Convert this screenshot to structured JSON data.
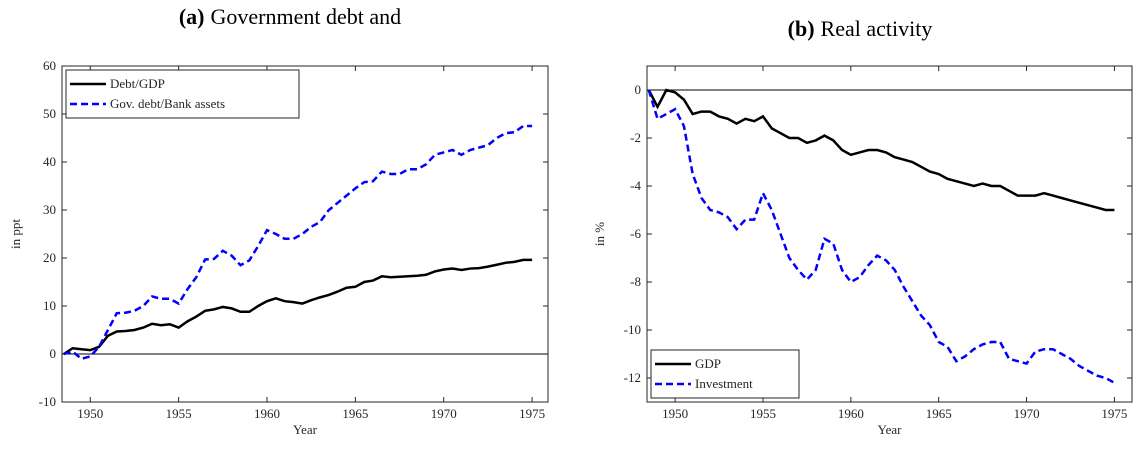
{
  "chart_data": [
    {
      "type": "line",
      "panel_label": "(a)",
      "title": "Government debt and",
      "xlabel": "Year",
      "ylabel": "in ppt",
      "xlim": [
        1948.4,
        1975.9
      ],
      "xticks": [
        1950,
        1955,
        1960,
        1965,
        1970,
        1975
      ],
      "ylim": [
        -10,
        60
      ],
      "yticks": [
        -10,
        0,
        10,
        20,
        30,
        40,
        50,
        60
      ],
      "reference_line": 0,
      "legend": "upper-left",
      "x": [
        1948.5,
        1949,
        1949.5,
        1950,
        1950.5,
        1951,
        1951.5,
        1952,
        1952.5,
        1953,
        1953.5,
        1954,
        1954.5,
        1955,
        1955.5,
        1956,
        1956.5,
        1957,
        1957.5,
        1958,
        1958.5,
        1959,
        1959.5,
        1960,
        1960.5,
        1961,
        1961.5,
        1962,
        1962.5,
        1963,
        1963.5,
        1964,
        1964.5,
        1965,
        1965.5,
        1966,
        1966.5,
        1967,
        1967.5,
        1968,
        1968.5,
        1969,
        1969.5,
        1970,
        1970.5,
        1971,
        1971.5,
        1972,
        1972.5,
        1973,
        1973.5,
        1974,
        1974.5,
        1975
      ],
      "series": [
        {
          "name": "Debt/GDP",
          "color": "#000000",
          "dash": "solid",
          "values": [
            0,
            1.2,
            1.0,
            0.8,
            1.5,
            3.8,
            4.7,
            4.8,
            5.0,
            5.5,
            6.3,
            6.0,
            6.2,
            5.5,
            6.8,
            7.8,
            9.0,
            9.3,
            9.8,
            9.5,
            8.8,
            8.8,
            10,
            11,
            11.6,
            11,
            10.8,
            10.5,
            11.2,
            11.8,
            12.3,
            13,
            13.8,
            14,
            15,
            15.3,
            16.2,
            16,
            16.1,
            16.2,
            16.3,
            16.5,
            17.2,
            17.6,
            17.8,
            17.5,
            17.8,
            17.9,
            18.2,
            18.6,
            19.0,
            19.2,
            19.6,
            19.6
          ]
        },
        {
          "name": "Gov. debt/Bank assets",
          "color": "#0000ff",
          "dash": "dashed",
          "values": [
            0,
            0.5,
            -1,
            -0.5,
            1.5,
            5,
            8.5,
            8.6,
            9,
            10,
            12,
            11.5,
            11.5,
            10.5,
            13.5,
            16,
            19.7,
            19.8,
            21.5,
            20.5,
            18.5,
            19.5,
            22.5,
            25.8,
            25,
            24,
            24,
            25,
            26.5,
            27.5,
            30,
            31.5,
            33,
            34.5,
            35.8,
            36,
            38,
            37.5,
            37.5,
            38.5,
            38.5,
            39.5,
            41.5,
            42,
            42.5,
            41.5,
            42.5,
            43,
            43.5,
            45,
            46,
            46.2,
            47.5,
            47.5
          ]
        }
      ]
    },
    {
      "type": "line",
      "panel_label": "(b)",
      "title": "Real activity",
      "xlabel": "Year",
      "ylabel": "in %",
      "xlim": [
        1948.4,
        1976
      ],
      "xticks": [
        1950,
        1955,
        1960,
        1965,
        1970,
        1975
      ],
      "ylim": [
        -13,
        1
      ],
      "yticks": [
        -12,
        -10,
        -8,
        -6,
        -4,
        -2,
        0
      ],
      "reference_line": 0,
      "legend": "lower-left",
      "x": [
        1948.5,
        1949,
        1949.5,
        1950,
        1950.5,
        1951,
        1951.5,
        1952,
        1952.5,
        1953,
        1953.5,
        1954,
        1954.5,
        1955,
        1955.5,
        1956,
        1956.5,
        1957,
        1957.5,
        1958,
        1958.5,
        1959,
        1959.5,
        1960,
        1960.5,
        1961,
        1961.5,
        1962,
        1962.5,
        1963,
        1963.5,
        1964,
        1964.5,
        1965,
        1965.5,
        1966,
        1966.5,
        1967,
        1967.5,
        1968,
        1968.5,
        1969,
        1969.5,
        1970,
        1970.5,
        1971,
        1971.5,
        1972,
        1972.5,
        1973,
        1973.5,
        1974,
        1974.5,
        1975
      ],
      "series": [
        {
          "name": "GDP",
          "color": "#000000",
          "dash": "solid",
          "values": [
            0,
            -0.7,
            0,
            -0.1,
            -0.4,
            -1.0,
            -0.9,
            -0.9,
            -1.1,
            -1.2,
            -1.4,
            -1.2,
            -1.3,
            -1.1,
            -1.6,
            -1.8,
            -2.0,
            -2.0,
            -2.2,
            -2.1,
            -1.9,
            -2.1,
            -2.5,
            -2.7,
            -2.6,
            -2.5,
            -2.5,
            -2.6,
            -2.8,
            -2.9,
            -3.0,
            -3.2,
            -3.4,
            -3.5,
            -3.7,
            -3.8,
            -3.9,
            -4.0,
            -3.9,
            -4.0,
            -4.0,
            -4.2,
            -4.4,
            -4.4,
            -4.4,
            -4.3,
            -4.4,
            -4.5,
            -4.6,
            -4.7,
            -4.8,
            -4.9,
            -5.0,
            -5.0
          ]
        },
        {
          "name": "Investment",
          "color": "#0000ff",
          "dash": "dashed",
          "values": [
            0,
            -1.2,
            -1.0,
            -0.8,
            -1.5,
            -3.5,
            -4.5,
            -5.0,
            -5.1,
            -5.3,
            -5.8,
            -5.4,
            -5.4,
            -4.3,
            -5.0,
            -6.0,
            -7.0,
            -7.5,
            -7.9,
            -7.5,
            -6.2,
            -6.4,
            -7.5,
            -8.0,
            -7.8,
            -7.3,
            -6.9,
            -7.1,
            -7.5,
            -8.2,
            -8.8,
            -9.4,
            -9.8,
            -10.5,
            -10.7,
            -11.3,
            -11.1,
            -10.8,
            -10.6,
            -10.5,
            -10.5,
            -11.2,
            -11.3,
            -11.4,
            -10.9,
            -10.8,
            -10.8,
            -11.0,
            -11.2,
            -11.5,
            -11.7,
            -11.9,
            -12.0,
            -12.2
          ]
        }
      ]
    }
  ]
}
